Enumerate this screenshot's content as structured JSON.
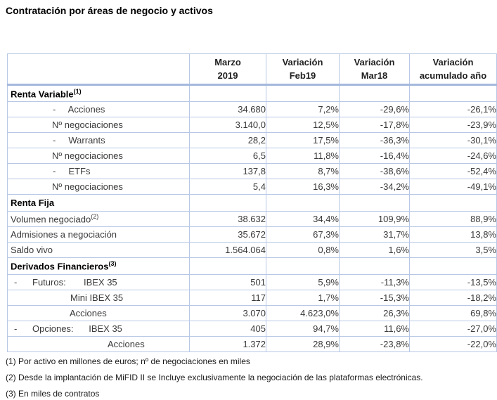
{
  "page": {
    "title": "Contratación por áreas de negocio y activos"
  },
  "colors": {
    "grid_border": "#b7c7e5",
    "header_separator": "#a4b8dc",
    "body_text": "#3a3a3a",
    "section_text": "#000000"
  },
  "table": {
    "headers": [
      {
        "line1": "",
        "line2": ""
      },
      {
        "line1": "Marzo",
        "line2": "2019"
      },
      {
        "line1": "Variación",
        "line2": "Feb19"
      },
      {
        "line1": "Variación",
        "line2": "Mar18"
      },
      {
        "line1": "Variación",
        "line2": "acumulado año"
      }
    ],
    "rows": [
      {
        "style": "section",
        "label": "Renta Variable",
        "sup": "(1)",
        "values": [
          "",
          "",
          "",
          ""
        ]
      },
      {
        "style": "rv-asset",
        "label": "-     Acciones",
        "sup": "",
        "values": [
          "34.680",
          "7,2%",
          "-29,6%",
          "-26,1%"
        ]
      },
      {
        "style": "noneg",
        "label": "Nº negociaciones",
        "sup": "",
        "values": [
          "3.140,0",
          "12,5%",
          "-17,8%",
          "-23,9%"
        ]
      },
      {
        "style": "rv-asset",
        "label": "-     Warrants",
        "sup": "",
        "values": [
          "28,2",
          "17,5%",
          "-36,3%",
          "-30,1%"
        ]
      },
      {
        "style": "noneg",
        "label": "Nº negociaciones",
        "sup": "",
        "values": [
          "6,5",
          "11,8%",
          "-16,4%",
          "-24,6%"
        ]
      },
      {
        "style": "rv-asset",
        "label": "-     ETFs",
        "sup": "",
        "values": [
          "137,8",
          "8,7%",
          "-38,6%",
          "-52,4%"
        ]
      },
      {
        "style": "noneg",
        "label": "Nº negociaciones",
        "sup": "",
        "values": [
          "5,4",
          "16,3%",
          "-34,2%",
          "-49,1%"
        ]
      },
      {
        "style": "section",
        "label": "Renta Fija",
        "sup": "",
        "values": [
          "",
          "",
          "",
          ""
        ]
      },
      {
        "style": "plain",
        "label": "Volumen negociado",
        "sup": "(2)",
        "values": [
          "38.632",
          "34,4%",
          "109,9%",
          "88,9%"
        ]
      },
      {
        "style": "plain",
        "label": "Admisiones a negociación",
        "sup": "",
        "values": [
          "35.672",
          "67,3%",
          "31,7%",
          "13,8%"
        ]
      },
      {
        "style": "plain",
        "label": "Saldo vivo",
        "sup": "",
        "values": [
          "1.564.064",
          "0,8%",
          "1,6%",
          "3,5%"
        ]
      },
      {
        "style": "section",
        "label": "Derivados Financieros",
        "sup": "(3)",
        "values": [
          "",
          "",
          "",
          ""
        ]
      },
      {
        "style": "deriv",
        "label": "-      Futuros:       IBEX 35",
        "sup": "",
        "values": [
          "501",
          "5,9%",
          "-11,3%",
          "-13,5%"
        ]
      },
      {
        "style": "mini",
        "label": "Mini IBEX 35",
        "sup": "",
        "values": [
          "117",
          "1,7%",
          "-15,3%",
          "-18,2%"
        ]
      },
      {
        "style": "accfut",
        "label": "Acciones",
        "sup": "",
        "values": [
          "3.070",
          "4.623,0%",
          "26,3%",
          "69,8%"
        ]
      },
      {
        "style": "deriv",
        "label": "-      Opciones:      IBEX 35",
        "sup": "",
        "values": [
          "405",
          "94,7%",
          "11,6%",
          "-27,0%"
        ]
      },
      {
        "style": "accopc",
        "label": "Acciones",
        "sup": "",
        "values": [
          "1.372",
          "28,9%",
          "-23,8%",
          "-22,0%"
        ]
      }
    ]
  },
  "footnotes": [
    "(1) Por activo en millones de euros; nº de negociaciones en miles",
    "(2) Desde la implantación de MiFID II se Incluye exclusivamente la negociación de las plataformas electrónicas.",
    "(3) En miles de contratos"
  ]
}
